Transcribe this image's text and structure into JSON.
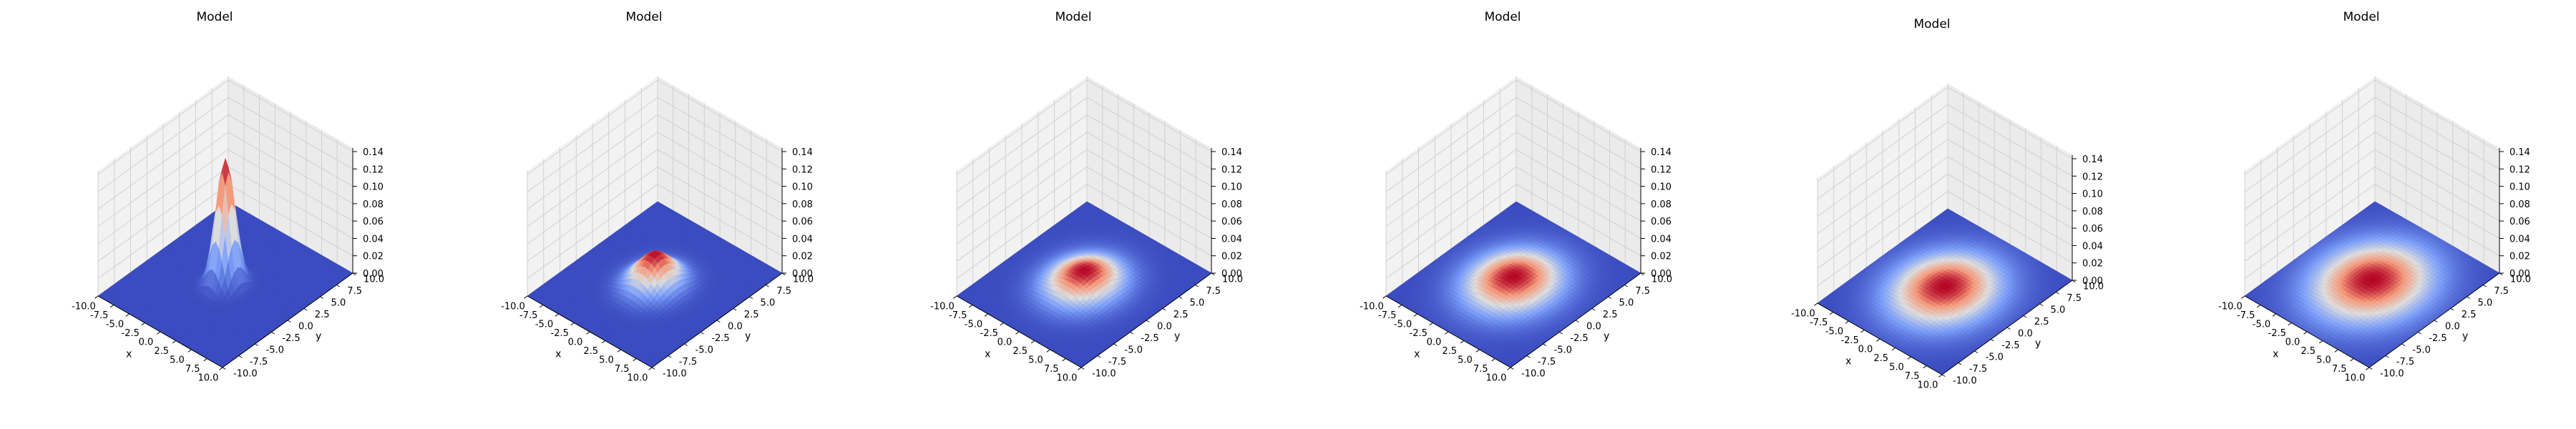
{
  "chart_data": [
    {
      "type": "surface3d",
      "title": "Model",
      "xlabel": "x",
      "ylabel": "y",
      "zlabel": "",
      "xlim": [
        -10,
        10
      ],
      "ylim": [
        -10,
        10
      ],
      "zlim": [
        0,
        0.14
      ],
      "colormap": "coolwarm",
      "peak": 0.145,
      "sigma": 1.1,
      "xticks": [
        "-10.0",
        "-7.5",
        "-5.0",
        "-2.5",
        "0.0",
        "2.5",
        "5.0",
        "7.5",
        "10.0"
      ],
      "yticks": [
        "-10.0",
        "-7.5",
        "-5.0",
        "-2.5",
        "0.0",
        "2.5",
        "5.0",
        "7.5",
        "10.0"
      ],
      "zticks": [
        "0.00",
        "0.02",
        "0.04",
        "0.06",
        "0.08",
        "0.10",
        "0.12",
        "0.14"
      ]
    },
    {
      "type": "surface3d",
      "title": "Model",
      "xlabel": "x",
      "ylabel": "y",
      "zlabel": "",
      "xlim": [
        -10,
        10
      ],
      "ylim": [
        -10,
        10
      ],
      "zlim": [
        0,
        0.14
      ],
      "colormap": "coolwarm",
      "peak": 0.036,
      "sigma": 2.1,
      "xticks": [
        "-10.0",
        "-7.5",
        "-5.0",
        "-2.5",
        "0.0",
        "2.5",
        "5.0",
        "7.5",
        "10.0"
      ],
      "yticks": [
        "-10.0",
        "-7.5",
        "-5.0",
        "-2.5",
        "0.0",
        "2.5",
        "5.0",
        "7.5",
        "10.0"
      ],
      "zticks": [
        "0.00",
        "0.02",
        "0.04",
        "0.06",
        "0.08",
        "0.10",
        "0.12",
        "0.14"
      ]
    },
    {
      "type": "surface3d",
      "title": "Model",
      "xlabel": "x",
      "ylabel": "y",
      "zlabel": "",
      "xlim": [
        -10,
        10
      ],
      "ylim": [
        -10,
        10
      ],
      "zlim": [
        0,
        0.14
      ],
      "colormap": "coolwarm",
      "peak": 0.016,
      "sigma": 3.0,
      "xticks": [
        "-10.0",
        "-7.5",
        "-5.0",
        "-2.5",
        "0.0",
        "2.5",
        "5.0",
        "7.5",
        "10.0"
      ],
      "yticks": [
        "-10.0",
        "-7.5",
        "-5.0",
        "-2.5",
        "0.0",
        "2.5",
        "5.0",
        "7.5",
        "10.0"
      ],
      "zticks": [
        "0.00",
        "0.02",
        "0.04",
        "0.06",
        "0.08",
        "0.10",
        "0.12",
        "0.14"
      ]
    },
    {
      "type": "surface3d",
      "title": "Model",
      "xlabel": "x",
      "ylabel": "y",
      "zlabel": "",
      "xlim": [
        -10,
        10
      ],
      "ylim": [
        -10,
        10
      ],
      "zlim": [
        0,
        0.14
      ],
      "colormap": "coolwarm",
      "peak": 0.009,
      "sigma": 3.7,
      "xticks": [
        "-10.0",
        "-7.5",
        "-5.0",
        "-2.5",
        "0.0",
        "2.5",
        "5.0",
        "7.5",
        "10.0"
      ],
      "yticks": [
        "-10.0",
        "-7.5",
        "-5.0",
        "-2.5",
        "0.0",
        "2.5",
        "5.0",
        "7.5",
        "10.0"
      ],
      "zticks": [
        "0.00",
        "0.02",
        "0.04",
        "0.06",
        "0.08",
        "0.10",
        "0.12",
        "0.14"
      ]
    },
    {
      "type": "surface3d",
      "title": "Model",
      "xlabel": "x",
      "ylabel": "y",
      "zlabel": "",
      "xlim": [
        -10,
        10
      ],
      "ylim": [
        -10,
        10
      ],
      "zlim": [
        0,
        0.14
      ],
      "colormap": "coolwarm",
      "peak": 0.006,
      "sigma": 4.2,
      "xticks": [
        "-10.0",
        "-7.5",
        "-5.0",
        "-2.5",
        "0.0",
        "2.5",
        "5.0",
        "7.5",
        "10.0"
      ],
      "yticks": [
        "-10.0",
        "-7.5",
        "-5.0",
        "-2.5",
        "0.0",
        "2.5",
        "5.0",
        "7.5",
        "10.0"
      ],
      "zticks": [
        "0.00",
        "0.02",
        "0.04",
        "0.06",
        "0.08",
        "0.10",
        "0.12",
        "0.14"
      ]
    },
    {
      "type": "surface3d",
      "title": "Model",
      "xlabel": "x",
      "ylabel": "y",
      "zlabel": "",
      "xlim": [
        -10,
        10
      ],
      "ylim": [
        -10,
        10
      ],
      "zlim": [
        0,
        0.14
      ],
      "colormap": "coolwarm",
      "peak": 0.005,
      "sigma": 4.6,
      "xticks": [
        "-10.0",
        "-7.5",
        "-5.0",
        "-2.5",
        "0.0",
        "2.5",
        "5.0",
        "7.5",
        "10.0"
      ],
      "yticks": [
        "-10.0",
        "-7.5",
        "-5.0",
        "-2.5",
        "0.0",
        "2.5",
        "5.0",
        "7.5",
        "10.0"
      ],
      "zticks": [
        "0.00",
        "0.02",
        "0.04",
        "0.06",
        "0.08",
        "0.10",
        "0.12",
        "0.14"
      ]
    }
  ]
}
